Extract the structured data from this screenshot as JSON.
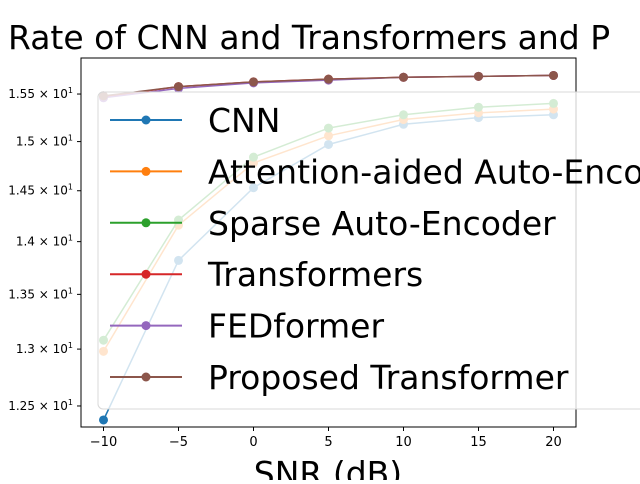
{
  "chart_data": {
    "type": "line",
    "title": "Rate of CNN and Transformers and P",
    "xlabel": "SNR (dB)",
    "ylabel": "",
    "x": [
      -10,
      -5,
      0,
      5,
      10,
      15,
      20
    ],
    "xlim": [
      -11.5,
      21.5
    ],
    "ylim": [
      12.32,
      15.89
    ],
    "yscale": "log",
    "x_ticks": [
      -10,
      -5,
      0,
      5,
      10,
      15,
      20
    ],
    "x_tick_labels": [
      "−10",
      "−5",
      "0",
      "5",
      "10",
      "15",
      "20"
    ],
    "y_ticks": [
      12.5,
      13.0,
      13.5,
      14.0,
      14.5,
      15.0,
      15.5
    ],
    "y_tick_labels": [
      {
        "mantissa": "1.25",
        "base": "10",
        "exp": "1"
      },
      {
        "mantissa": "1.3",
        "base": "10",
        "exp": "1"
      },
      {
        "mantissa": "1.35",
        "base": "10",
        "exp": "1"
      },
      {
        "mantissa": "1.4",
        "base": "10",
        "exp": "1"
      },
      {
        "mantissa": "1.45",
        "base": "10",
        "exp": "1"
      },
      {
        "mantissa": "1.5",
        "base": "10",
        "exp": "1"
      },
      {
        "mantissa": "1.55",
        "base": "10",
        "exp": "1"
      }
    ],
    "grid": false,
    "legend_position": "center-right",
    "series": [
      {
        "name": "CNN",
        "color": "#1f77b4",
        "values": [
          12.38,
          13.82,
          14.53,
          14.97,
          15.18,
          15.25,
          15.28
        ]
      },
      {
        "name": "Attention-aided Auto-Encoder",
        "color": "#ff7f0e",
        "values": [
          12.98,
          14.16,
          14.78,
          15.06,
          15.23,
          15.3,
          15.34
        ]
      },
      {
        "name": "Sparse Auto-Encoder",
        "color": "#2ca02c",
        "values": [
          13.08,
          14.21,
          14.84,
          15.14,
          15.28,
          15.36,
          15.4
        ]
      },
      {
        "name": "Transformers",
        "color": "#d62728",
        "values": [
          15.47,
          15.58,
          15.63,
          15.66,
          15.68,
          15.69,
          15.7
        ]
      },
      {
        "name": "FEDformer",
        "color": "#9467bd",
        "values": [
          15.46,
          15.56,
          15.62,
          15.65,
          15.68,
          15.69,
          15.7
        ]
      },
      {
        "name": "Proposed Transformer",
        "color": "#8c564b",
        "values": [
          15.48,
          15.58,
          15.63,
          15.66,
          15.68,
          15.69,
          15.7
        ]
      }
    ]
  }
}
